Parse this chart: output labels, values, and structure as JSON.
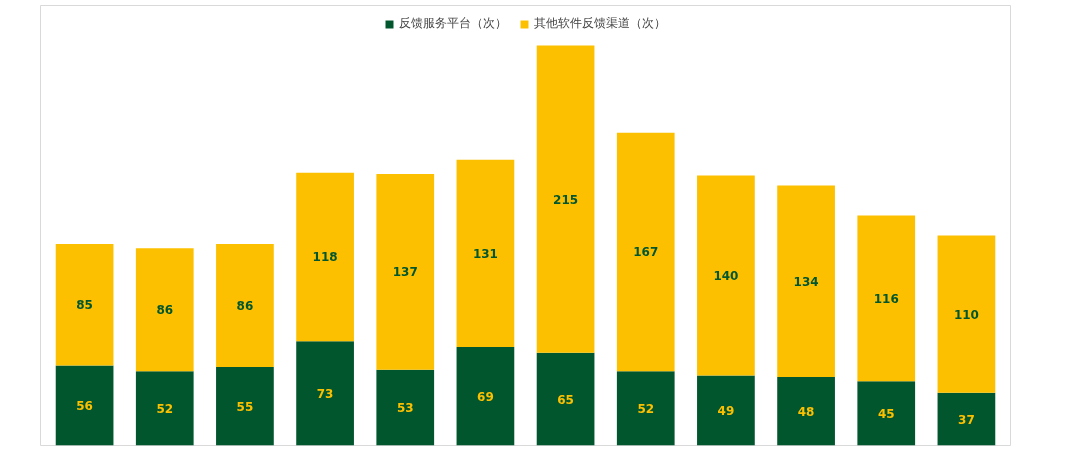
{
  "chart_data": {
    "type": "bar",
    "stacked": true,
    "data_labels": true,
    "legend": "top",
    "grid": false,
    "categories": [
      null,
      null,
      null,
      null,
      null,
      null,
      null,
      null,
      null,
      null,
      null,
      null
    ],
    "series": [
      {
        "name": "反馈服务平台（次）",
        "color": "#02562e",
        "values": [
          56,
          52,
          55,
          73,
          53,
          69,
          65,
          52,
          49,
          48,
          45,
          37
        ]
      },
      {
        "name": "其他软件反馈渠道（次）",
        "color": "#fcc000",
        "values": [
          85,
          86,
          86,
          118,
          137,
          131,
          215,
          167,
          140,
          134,
          116,
          110
        ]
      }
    ]
  }
}
